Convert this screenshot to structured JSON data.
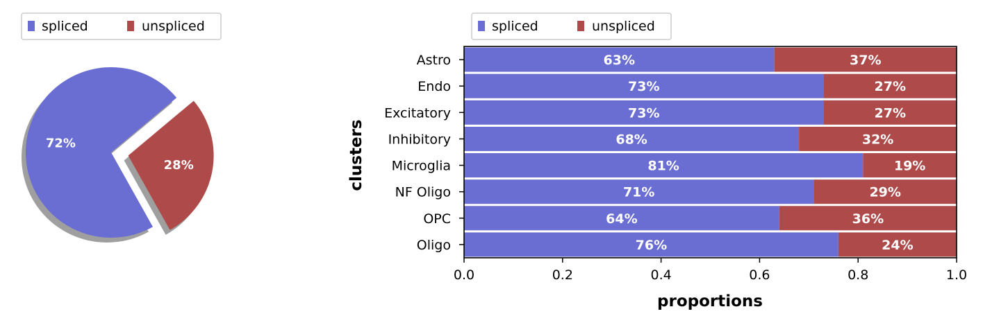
{
  "colors": {
    "spliced": "#6a6dd1",
    "unspliced": "#ae4a4a",
    "shadow": "#7f7f7f",
    "text_on_bar": "#ffffff"
  },
  "chart_data": [
    {
      "type": "pie",
      "legend": {
        "entries": [
          "spliced",
          "unspliced"
        ],
        "placement": "top-left"
      },
      "slices": [
        {
          "label": "spliced",
          "value": 72,
          "text": "72%",
          "explode": false
        },
        {
          "label": "unspliced",
          "value": 28,
          "text": "28%",
          "explode": true
        }
      ],
      "shadow": true
    },
    {
      "type": "bar",
      "orientation": "horizontal",
      "stacked": true,
      "legend": {
        "entries": [
          "spliced",
          "unspliced"
        ],
        "placement": "top-left"
      },
      "xlabel": "proportions",
      "ylabel": "clusters",
      "xlim": [
        0,
        1
      ],
      "xticks": [
        "0.0",
        "0.2",
        "0.4",
        "0.6",
        "0.8",
        "1.0"
      ],
      "categories": [
        "Astro",
        "Endo",
        "Excitatory",
        "Inhibitory",
        "Microglia",
        "NF Oligo",
        "OPC",
        "Oligo"
      ],
      "series": [
        {
          "name": "spliced",
          "values": [
            0.63,
            0.73,
            0.73,
            0.68,
            0.81,
            0.71,
            0.64,
            0.76
          ],
          "labels": [
            "63%",
            "73%",
            "73%",
            "68%",
            "81%",
            "71%",
            "64%",
            "76%"
          ]
        },
        {
          "name": "unspliced",
          "values": [
            0.37,
            0.27,
            0.27,
            0.32,
            0.19,
            0.29,
            0.36,
            0.24
          ],
          "labels": [
            "37%",
            "27%",
            "27%",
            "32%",
            "19%",
            "29%",
            "36%",
            "24%"
          ]
        }
      ]
    }
  ]
}
